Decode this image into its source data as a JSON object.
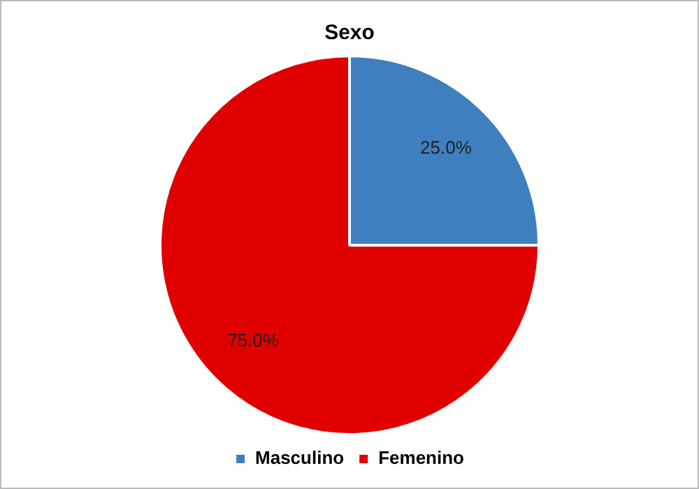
{
  "chart_data": {
    "type": "pie",
    "title": "Sexo",
    "categories": [
      "Masculino",
      "Femenino"
    ],
    "values": [
      25,
      75
    ],
    "colors": [
      "#3f7fbf",
      "#e00000"
    ],
    "value_labels": [
      "25.0%",
      "75.0%"
    ],
    "legend": "bottom"
  }
}
